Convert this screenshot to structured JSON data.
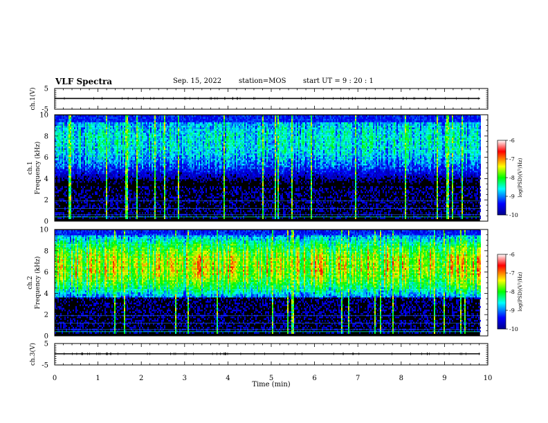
{
  "header": {
    "title": "VLF Spectra",
    "date": "Sep. 15, 2022",
    "station": "station=MOS",
    "start_time": "start UT =  9 : 20 : 1"
  },
  "chart_data": {
    "type": "heatmap",
    "xlabel": "Time (min)",
    "xlim": [
      0,
      10
    ],
    "x_ticks": [
      "0",
      "1",
      "2",
      "3",
      "4",
      "5",
      "6",
      "7",
      "8",
      "9",
      "10"
    ],
    "panels": [
      {
        "name": "waveform-ch1",
        "ylabel": "ch.1(V)",
        "ylim": [
          -5,
          5
        ],
        "y_ticks": [
          "5",
          "-5"
        ]
      },
      {
        "name": "spectrogram-ch1",
        "ylabel_line1": "ch.1",
        "ylabel_line2": "Frequency (kHz)",
        "ylim": [
          0,
          10
        ],
        "y_ticks": [
          "0",
          "2",
          "4",
          "6",
          "8",
          "10"
        ],
        "data_end_min": 9.82,
        "band_low_khz": 3.2,
        "band_high_khz": 9.2,
        "peak_khz": 7.5,
        "colorbar_label": "log(PSD)(V²/Hz)",
        "colorbar_ticks": [
          "-6",
          "-7",
          "-8",
          "-9",
          "-10"
        ]
      },
      {
        "name": "spectrogram-ch2",
        "ylabel_line1": "ch.2",
        "ylabel_line2": "Frequency (kHz)",
        "ylim": [
          0,
          10
        ],
        "y_ticks": [
          "0",
          "2",
          "4",
          "6",
          "8",
          "10"
        ],
        "data_end_min": 9.82,
        "band_low_khz": 3.5,
        "band_high_khz": 9.4,
        "peak_khz": 6.5,
        "colorbar_label": "log(PSD)(V²/Hz)",
        "colorbar_ticks": [
          "-6",
          "-7",
          "-8",
          "-9",
          "-10"
        ]
      },
      {
        "name": "waveform-ch3",
        "ylabel": "ch.3(V)",
        "ylim": [
          -5,
          5
        ],
        "y_ticks": [
          "5",
          "-5"
        ]
      }
    ],
    "colormap": [
      "#00008b",
      "#0000ff",
      "#00ffff",
      "#00ff00",
      "#ffff00",
      "#ff0000",
      "#ffffff"
    ],
    "colorbar_range": [
      -10,
      -6
    ],
    "grid": false,
    "legend": "none"
  }
}
